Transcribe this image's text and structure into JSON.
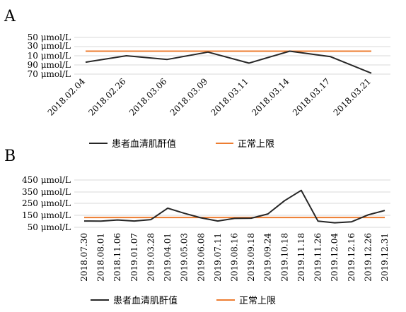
{
  "chart_data": [
    {
      "type": "line",
      "panel_label": "A",
      "categories": [
        "2018.02.04",
        "2018.02.26",
        "2018.03.06",
        "2018.03.09",
        "2018.03.11",
        "2018.03.14",
        "2018.03.17",
        "2018.03.21"
      ],
      "ytick_labels": [
        "50  μmol/L",
        "30  μmol/L",
        "10  μmol/L",
        "90  μmol/L",
        "70  μmol/L"
      ],
      "series": [
        {
          "name": "患者血清肌酐值",
          "color": "#262626",
          "values": [
            103,
            110,
            106,
            114,
            102,
            115,
            109,
            91
          ]
        },
        {
          "name": "正常上限",
          "color": "#ed7d31",
          "values": [
            115,
            115,
            115,
            115,
            115,
            115,
            115,
            115
          ]
        }
      ],
      "ylim": [
        90,
        130
      ],
      "legend_position": "bottom",
      "grid": true
    },
    {
      "type": "line",
      "panel_label": "B",
      "categories": [
        "2018.07.30",
        "2018.08.01",
        "2018.11.06",
        "2019.01.07",
        "2019.03.28",
        "2019.04.01",
        "2019.05.03",
        "2019.06.08",
        "2019.07.11",
        "2019.08.16",
        "2019.09.18",
        "2019.09.24",
        "2019.10.18",
        "2019.11.18",
        "2019.11.26",
        "2019.12.04",
        "2019.12.16",
        "2019.12.26",
        "2019.12.31"
      ],
      "ytick_labels": [
        "450  μmol/L",
        "350  μmol/L",
        "250  μmol/L",
        "150  μmol/L",
        "50  μmol/L"
      ],
      "series": [
        {
          "name": "患者血清肌酐值",
          "color": "#262626",
          "values": [
            103,
            102,
            112,
            103,
            115,
            212,
            168,
            130,
            103,
            125,
            127,
            163,
            275,
            362,
            102,
            88,
            96,
            155,
            192
          ]
        },
        {
          "name": "正常上限",
          "color": "#ed7d31",
          "values": [
            133,
            133,
            133,
            133,
            133,
            133,
            133,
            133,
            133,
            133,
            133,
            133,
            133,
            133,
            133,
            133,
            133,
            133,
            133
          ]
        }
      ],
      "ylim": [
        50,
        450
      ],
      "legend_position": "bottom",
      "grid": true
    }
  ]
}
